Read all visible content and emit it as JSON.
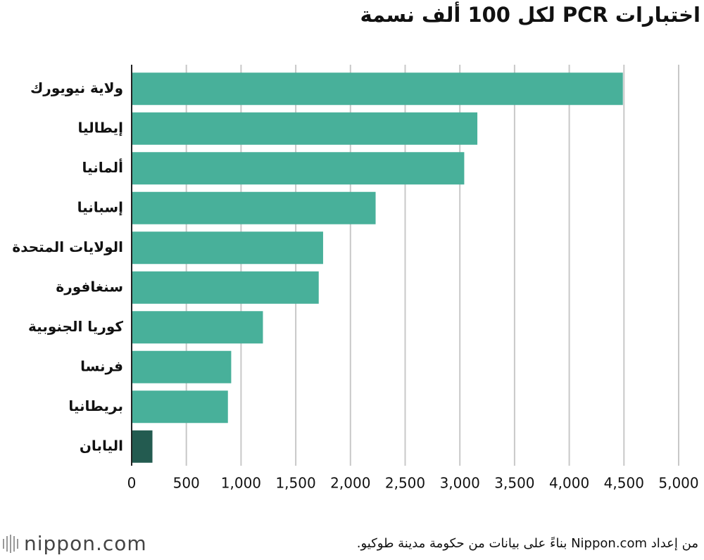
{
  "chart_data": {
    "type": "bar",
    "orientation": "horizontal",
    "title": "اختبارات PCR لكل 100 ألف نسمة",
    "categories": [
      "ولاية نيويورك",
      "إيطاليا",
      "ألمانيا",
      "إسبانيا",
      "الولايات المتحدة",
      "سنغافورة",
      "كوريا الجنوبية",
      "فرنسا",
      "بريطانيا",
      "اليابان"
    ],
    "values": [
      4490,
      3160,
      3040,
      2230,
      1750,
      1710,
      1200,
      910,
      880,
      190
    ],
    "colors": [
      "#48b09a",
      "#48b09a",
      "#48b09a",
      "#48b09a",
      "#48b09a",
      "#48b09a",
      "#48b09a",
      "#48b09a",
      "#48b09a",
      "#235b50"
    ],
    "xlim": [
      0,
      5000
    ],
    "xticks": [
      0,
      500,
      {
        "value": 1000,
        "label": "1,000"
      },
      {
        "value": 1500,
        "label": "1,500"
      },
      {
        "value": 2000,
        "label": "2,000"
      },
      {
        "value": 2500,
        "label": "2,500"
      },
      {
        "value": 3000,
        "label": "3,000"
      },
      {
        "value": 3500,
        "label": "3,500"
      },
      {
        "value": 4000,
        "label": "4,000"
      },
      {
        "value": 4500,
        "label": "4,500"
      },
      {
        "value": 5000,
        "label": "5,000"
      }
    ],
    "grid": true,
    "source": "من إعداد Nippon.com بناءً على بيانات من حكومة مدينة طوكيو.",
    "logo": "nippon.com"
  }
}
